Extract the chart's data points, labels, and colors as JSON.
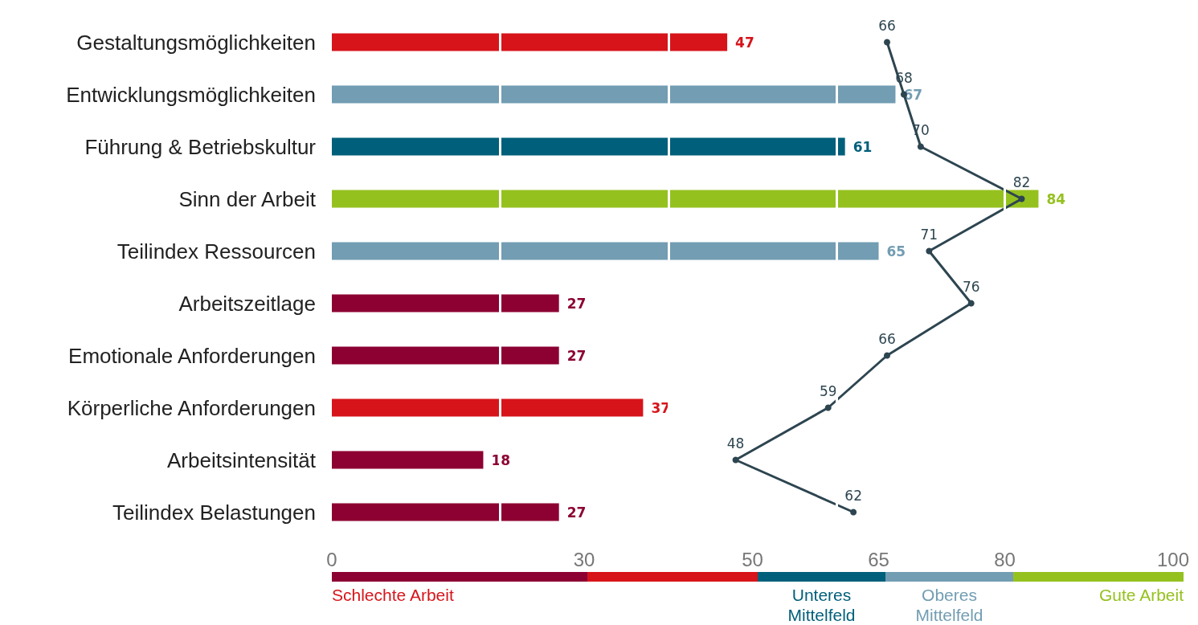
{
  "chart_data": {
    "type": "bar",
    "orientation": "horizontal",
    "categories": [
      "Gestaltungsmöglichkeiten",
      "Entwicklungsmöglichkeiten",
      "Führung & Betriebskultur",
      "Sinn der Arbeit",
      "Teilindex Ressourcen",
      "Arbeitszeitlage",
      "Emotionale Anforderungen",
      "Körperliche Anforderungen",
      "Arbeitsintensität",
      "Teilindex Belastungen"
    ],
    "series": [
      {
        "values": [
          47,
          67,
          61,
          84,
          65,
          27,
          27,
          37,
          18,
          27
        ],
        "colors": [
          "#d7141a",
          "#729db3",
          "#005f7a",
          "#95c11f",
          "#729db3",
          "#8c0032",
          "#8c0032",
          "#d7141a",
          "#8c0032",
          "#8c0032"
        ]
      },
      {
        "type": "line",
        "color": "#2d4550",
        "values": [
          66,
          68,
          70,
          82,
          71,
          76,
          66,
          59,
          48,
          62
        ]
      }
    ],
    "xlim": [
      0,
      100
    ],
    "xticks": [
      0,
      30,
      50,
      65,
      80,
      100
    ],
    "annotations": [
      "Schlechte Arbeit",
      "Unteres Mittelfeld",
      "Oberes Mittelfeld",
      "Gute Arbeit"
    ],
    "data_labels": true,
    "grid": "x",
    "marker": "circle",
    "line_style": "solid"
  }
}
